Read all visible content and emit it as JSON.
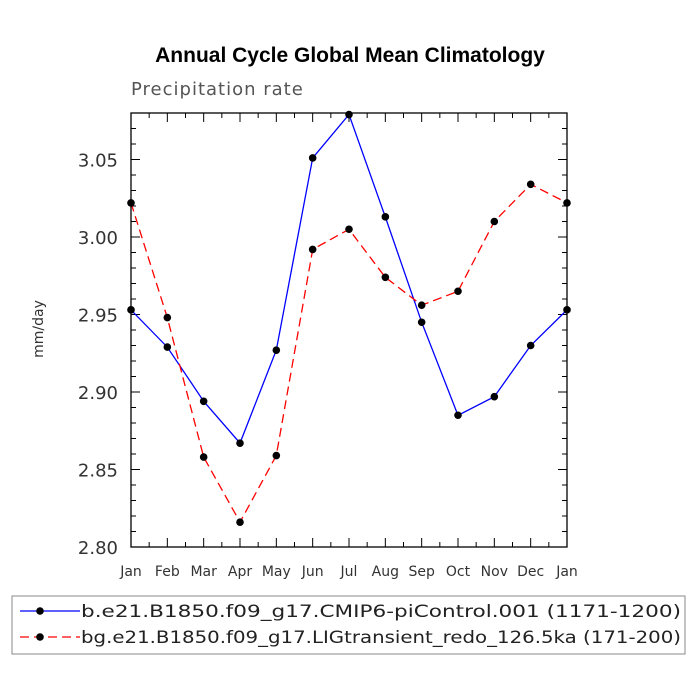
{
  "chart_data": {
    "type": "line",
    "title": "Annual Cycle Global Mean Climatology",
    "subtitle": "Precipitation rate",
    "xlabel": "",
    "ylabel": "mm/day",
    "categories": [
      "Jan",
      "Feb",
      "Mar",
      "Apr",
      "May",
      "Jun",
      "Jul",
      "Aug",
      "Sep",
      "Oct",
      "Nov",
      "Dec",
      "Jan"
    ],
    "ylim": [
      2.8,
      3.08
    ],
    "yticks": [
      2.8,
      2.85,
      2.9,
      2.95,
      3.0,
      3.05
    ],
    "ytick_labels": [
      "2.80",
      "2.85",
      "2.90",
      "2.95",
      "3.00",
      "3.05"
    ],
    "grid": false,
    "legend_position": "bottom",
    "series": [
      {
        "name": "b.e21.B1850.f09_g17.CMIP6-piControl.001 (1171-1200)",
        "color": "#0000ff",
        "dash": "solid",
        "values": [
          2.953,
          2.929,
          2.894,
          2.867,
          2.927,
          3.051,
          3.079,
          3.013,
          2.945,
          2.885,
          2.897,
          2.93,
          2.953
        ]
      },
      {
        "name": "bg.e21.B1850.f09_g17.LIGtransient_redo_126.5ka (171-200)",
        "color": "#ff0000",
        "dash": "dashed",
        "values": [
          3.022,
          2.948,
          2.858,
          2.816,
          2.859,
          2.992,
          3.005,
          2.974,
          2.956,
          2.965,
          3.01,
          3.034,
          3.022
        ]
      }
    ]
  }
}
